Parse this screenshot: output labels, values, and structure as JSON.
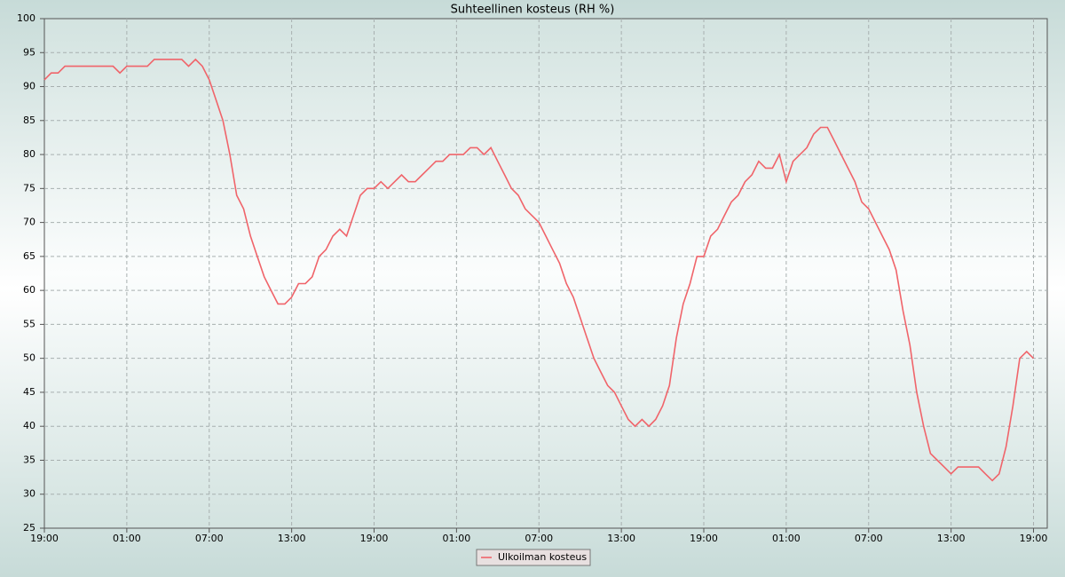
{
  "chart_data": {
    "type": "line",
    "title": "Suhteellinen kosteus (RH %)",
    "x": [
      0,
      0.5,
      1,
      1.5,
      2,
      2.5,
      3,
      3.5,
      4,
      4.5,
      5,
      5.5,
      6,
      6.5,
      7,
      7.5,
      8,
      8.5,
      9,
      9.5,
      10,
      10.5,
      11,
      11.5,
      12,
      12.5,
      13,
      13.5,
      14,
      14.5,
      15,
      15.5,
      16,
      16.5,
      17,
      17.5,
      18,
      18.5,
      19,
      19.5,
      20,
      20.5,
      21,
      21.5,
      22,
      22.5,
      23,
      23.5,
      24,
      24.5,
      25,
      25.5,
      26,
      26.5,
      27,
      27.5,
      28,
      28.5,
      29,
      29.5,
      30,
      30.5,
      31,
      31.5,
      32,
      32.5,
      33,
      33.5,
      34,
      34.5,
      35,
      35.5,
      36,
      36.5,
      37,
      37.5,
      38,
      38.5,
      39,
      39.5,
      40,
      40.5,
      41,
      41.5,
      42,
      42.5,
      43,
      43.5,
      44,
      44.5,
      45,
      45.5,
      46,
      46.5,
      47,
      47.5,
      48,
      48.5,
      49,
      49.5,
      50,
      50.5,
      51,
      51.5,
      52,
      52.5,
      53,
      53.5,
      54,
      54.5,
      55,
      55.5,
      56,
      56.5,
      57,
      57.5,
      58,
      58.5,
      59,
      59.5,
      60,
      60.5,
      61,
      61.5,
      62,
      62.5,
      63,
      63.5,
      64,
      64.5,
      65,
      65.5,
      66,
      66.5,
      67,
      67.5,
      68,
      68.5,
      69,
      69.5,
      70,
      70.5,
      71,
      71.5,
      72
    ],
    "series": [
      {
        "name": "Ulkoilman kosteus",
        "color": "#f0646a",
        "values": [
          91,
          92,
          92,
          93,
          93,
          93,
          93,
          93,
          93,
          93,
          93,
          92,
          93,
          93,
          93,
          93,
          94,
          94,
          94,
          94,
          94,
          93,
          94,
          93,
          91,
          88,
          85,
          80,
          74,
          72,
          68,
          65,
          62,
          60,
          58,
          58,
          59,
          61,
          61,
          62,
          65,
          66,
          68,
          69,
          68,
          71,
          74,
          75,
          75,
          76,
          75,
          76,
          77,
          76,
          76,
          77,
          78,
          79,
          79,
          80,
          80,
          80,
          81,
          81,
          80,
          81,
          79,
          77,
          75,
          74,
          72,
          71,
          70,
          68,
          66,
          64,
          61,
          59,
          56,
          53,
          50,
          48,
          46,
          45,
          43,
          41,
          40,
          41,
          40,
          41,
          43,
          46,
          53,
          58,
          61,
          65,
          65,
          68,
          69,
          71,
          73,
          74,
          76,
          77,
          79,
          78,
          78,
          80,
          76,
          79,
          80,
          81,
          83,
          84,
          84,
          82,
          80,
          78,
          76,
          73,
          72,
          70,
          68,
          66,
          63,
          57,
          52,
          45,
          40,
          36,
          35,
          34,
          33,
          34,
          34,
          34,
          34,
          33,
          32,
          33,
          37,
          43,
          50,
          51,
          50
        ]
      }
    ],
    "xlim": [
      0,
      73
    ],
    "xticks": [
      {
        "value": 0,
        "label": "19:00"
      },
      {
        "value": 6,
        "label": "01:00"
      },
      {
        "value": 12,
        "label": "07:00"
      },
      {
        "value": 18,
        "label": "13:00"
      },
      {
        "value": 24,
        "label": "19:00"
      },
      {
        "value": 30,
        "label": "01:00"
      },
      {
        "value": 36,
        "label": "07:00"
      },
      {
        "value": 42,
        "label": "13:00"
      },
      {
        "value": 48,
        "label": "19:00"
      },
      {
        "value": 54,
        "label": "01:00"
      },
      {
        "value": 60,
        "label": "07:00"
      },
      {
        "value": 66,
        "label": "13:00"
      },
      {
        "value": 72,
        "label": "19:00"
      }
    ],
    "ylim": [
      25,
      100
    ],
    "yticks": [
      25,
      30,
      35,
      40,
      45,
      50,
      55,
      60,
      65,
      70,
      75,
      80,
      85,
      90,
      95,
      100
    ],
    "grid": true,
    "legend": "bottom"
  }
}
